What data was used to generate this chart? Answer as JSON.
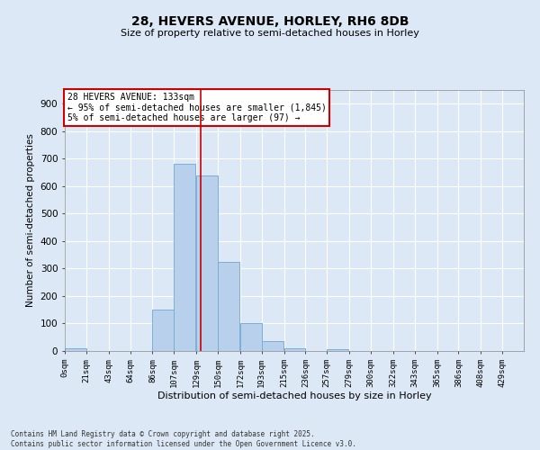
{
  "title_line1": "28, HEVERS AVENUE, HORLEY, RH6 8DB",
  "title_line2": "Size of property relative to semi-detached houses in Horley",
  "xlabel": "Distribution of semi-detached houses by size in Horley",
  "ylabel": "Number of semi-detached properties",
  "footnote": "Contains HM Land Registry data © Crown copyright and database right 2025.\nContains public sector information licensed under the Open Government Licence v3.0.",
  "annotation_line1": "28 HEVERS AVENUE: 133sqm",
  "annotation_line2": "← 95% of semi-detached houses are smaller (1,845)",
  "annotation_line3": "5% of semi-detached houses are larger (97) →",
  "bar_left_edges": [
    0,
    21,
    43,
    64,
    86,
    107,
    129,
    150,
    172,
    193,
    215,
    236,
    257,
    279,
    300,
    322,
    343,
    365,
    386,
    408
  ],
  "bar_heights": [
    10,
    0,
    0,
    0,
    150,
    680,
    640,
    325,
    100,
    35,
    10,
    0,
    5,
    0,
    0,
    0,
    0,
    0,
    0,
    0
  ],
  "bin_width": 21,
  "bar_color": "#b8d0eb",
  "bar_edge_color": "#7aafd4",
  "vline_x": 133,
  "vline_color": "#cc0000",
  "ylim": [
    0,
    950
  ],
  "yticks": [
    0,
    100,
    200,
    300,
    400,
    500,
    600,
    700,
    800,
    900
  ],
  "xtick_labels": [
    "0sqm",
    "21sqm",
    "43sqm",
    "64sqm",
    "86sqm",
    "107sqm",
    "129sqm",
    "150sqm",
    "172sqm",
    "193sqm",
    "215sqm",
    "236sqm",
    "257sqm",
    "279sqm",
    "300sqm",
    "322sqm",
    "343sqm",
    "365sqm",
    "386sqm",
    "408sqm",
    "429sqm"
  ],
  "bg_color": "#dce8f5",
  "grid_color": "#ffffff",
  "annotation_box_color": "#ffffff",
  "annotation_box_edge": "#cc0000"
}
